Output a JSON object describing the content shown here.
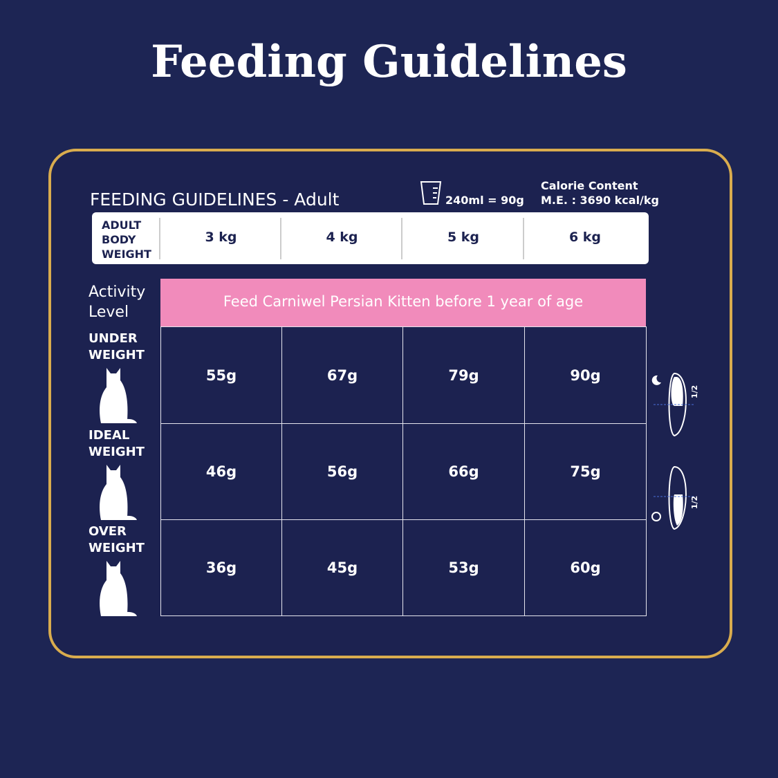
{
  "title": "Feeding Guidelines",
  "panel": {
    "heading": "FEEDING GUIDELINES - Adult",
    "measure": "240ml = 90g",
    "calorie": {
      "label": "Calorie Content",
      "value": "M.E. : 3690 kcal/kg"
    }
  },
  "weights": {
    "label": [
      "ADULT",
      "BODY",
      "WEIGHT"
    ],
    "values": [
      "3 kg",
      "4 kg",
      "5 kg",
      "6 kg"
    ]
  },
  "activity_label": [
    "Activity",
    "Level"
  ],
  "banner": "Feed Carniwel Persian Kitten before 1 year of age",
  "rows": [
    {
      "label": [
        "UNDER",
        "WEIGHT"
      ],
      "values": [
        "55g",
        "67g",
        "79g",
        "90g"
      ]
    },
    {
      "label": [
        "IDEAL",
        "WEIGHT"
      ],
      "values": [
        "46g",
        "56g",
        "66g",
        "75g"
      ]
    },
    {
      "label": [
        "OVER",
        "WEIGHT"
      ],
      "values": [
        "36g",
        "45g",
        "53g",
        "60g"
      ]
    }
  ],
  "bowls": [
    "1/2",
    "1/2"
  ]
}
